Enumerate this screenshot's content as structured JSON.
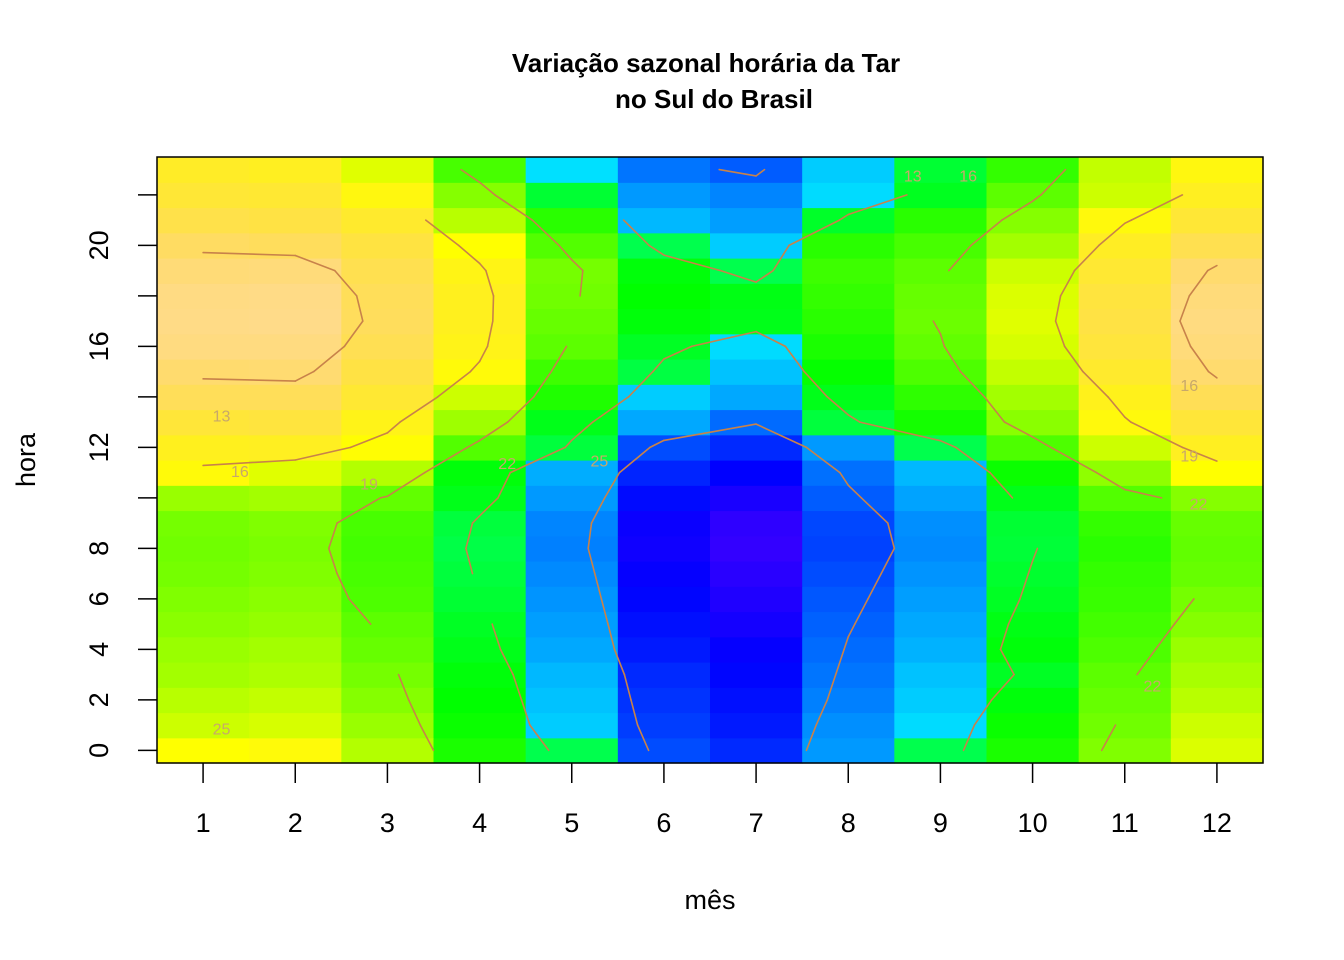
{
  "chart_data": {
    "type": "heatmap",
    "title": "Variação sazonal horária da Tar",
    "subtitle": "no Sul do Brasil",
    "xlabel": "mês",
    "ylabel": "hora",
    "x": [
      1,
      2,
      3,
      4,
      5,
      6,
      7,
      8,
      9,
      10,
      11,
      12
    ],
    "y": [
      0,
      1,
      2,
      3,
      4,
      5,
      6,
      7,
      8,
      9,
      10,
      11,
      12,
      13,
      14,
      15,
      16,
      17,
      18,
      19,
      20,
      21,
      22,
      23
    ],
    "xlim": [
      0.5,
      12.5
    ],
    "ylim": [
      -0.5,
      23.5
    ],
    "x_ticks": [
      1,
      2,
      3,
      4,
      5,
      6,
      7,
      8,
      9,
      10,
      11,
      12
    ],
    "y_ticks": [
      0,
      2,
      4,
      6,
      8,
      10,
      12,
      14,
      16,
      18,
      20,
      22
    ],
    "y_tick_labels": [
      "0",
      "2",
      "4",
      "6",
      "8",
      "",
      "12",
      "",
      "16",
      "",
      "20",
      ""
    ],
    "color_scale": "topo.colors",
    "zlim": [
      9.5,
      27.5
    ],
    "z": [
      [
        21.5,
        21.8,
        20.5,
        17.5,
        15.5,
        12.5,
        11.8,
        14.0,
        15.5,
        17.5,
        19.5,
        21.3
      ],
      [
        21.0,
        21.2,
        20.0,
        17.2,
        15.0,
        12.2,
        11.5,
        13.8,
        15.3,
        17.2,
        19.2,
        21.0
      ],
      [
        20.6,
        20.8,
        19.6,
        17.0,
        14.8,
        12.0,
        11.3,
        13.5,
        15.0,
        16.8,
        19.0,
        20.6
      ],
      [
        20.2,
        20.4,
        19.3,
        16.8,
        14.6,
        11.8,
        11.1,
        13.3,
        14.8,
        16.3,
        18.8,
        20.3
      ],
      [
        20.0,
        20.2,
        19.0,
        16.5,
        14.3,
        11.5,
        10.9,
        13.1,
        14.5,
        16.8,
        18.5,
        20.0
      ],
      [
        19.7,
        19.9,
        18.8,
        16.3,
        14.1,
        11.3,
        10.6,
        12.9,
        14.3,
        16.6,
        18.3,
        19.6
      ],
      [
        19.5,
        19.7,
        18.5,
        16.0,
        13.9,
        11.1,
        10.4,
        12.7,
        14.1,
        16.3,
        18.1,
        19.3
      ],
      [
        19.3,
        19.5,
        18.4,
        15.8,
        13.7,
        10.9,
        10.2,
        12.5,
        13.9,
        16.1,
        18.0,
        19.0
      ],
      [
        19.2,
        19.4,
        18.3,
        15.6,
        13.5,
        10.7,
        10.0,
        12.3,
        13.7,
        15.9,
        17.8,
        18.9
      ],
      [
        19.3,
        19.5,
        18.4,
        15.8,
        13.6,
        10.8,
        10.1,
        12.4,
        13.8,
        16.0,
        18.0,
        19.0
      ],
      [
        20.0,
        20.2,
        18.9,
        16.5,
        14.0,
        11.2,
        10.5,
        12.8,
        14.2,
        16.5,
        18.6,
        19.6
      ],
      [
        21.8,
        21.4,
        20.5,
        16.8,
        14.4,
        11.7,
        11.0,
        13.2,
        14.6,
        17.2,
        19.8,
        21.5
      ],
      [
        22.5,
        22.6,
        21.6,
        18.6,
        15.8,
        12.5,
        11.8,
        14.0,
        15.5,
        18.5,
        21.0,
        22.6
      ],
      [
        23.4,
        23.6,
        22.3,
        20.1,
        16.5,
        14.3,
        13.1,
        15.8,
        17.4,
        19.7,
        21.9,
        23.4
      ],
      [
        24.5,
        24.5,
        23.2,
        21.0,
        17.6,
        15.0,
        14.3,
        16.5,
        17.9,
        20.2,
        22.4,
        24.4
      ],
      [
        25.2,
        25.3,
        23.8,
        21.8,
        18.2,
        15.7,
        14.8,
        17.1,
        18.5,
        20.8,
        23.0,
        25.2
      ],
      [
        25.8,
        25.8,
        24.3,
        22.3,
        18.8,
        16.3,
        15.3,
        17.5,
        18.9,
        21.2,
        23.5,
        25.6
      ],
      [
        26.0,
        26.1,
        24.6,
        22.5,
        19.0,
        16.8,
        16.5,
        17.8,
        19.1,
        21.4,
        23.8,
        25.8
      ],
      [
        25.9,
        26.0,
        24.5,
        22.5,
        19.2,
        17.0,
        16.6,
        18.0,
        19.0,
        21.3,
        23.6,
        25.6
      ],
      [
        25.5,
        25.6,
        24.2,
        22.2,
        19.3,
        16.8,
        15.5,
        18.2,
        18.8,
        21.0,
        23.2,
        25.2
      ],
      [
        24.8,
        24.6,
        23.7,
        21.5,
        18.6,
        15.5,
        15.0,
        17.8,
        18.4,
        20.2,
        22.7,
        24.2
      ],
      [
        24.0,
        23.8,
        23.0,
        20.6,
        17.8,
        14.6,
        14.1,
        16.2,
        17.8,
        19.6,
        21.9,
        23.3
      ],
      [
        23.3,
        23.2,
        22.0,
        19.6,
        16.0,
        14.0,
        13.6,
        15.3,
        16.4,
        18.8,
        21.0,
        22.6
      ],
      [
        22.8,
        22.6,
        21.4,
        18.4,
        15.4,
        13.3,
        12.8,
        15.0,
        16.0,
        18.0,
        20.8,
        22.0
      ]
    ],
    "contour_levels": [
      13,
      16,
      19,
      22,
      25
    ],
    "contour_labels": [
      "13",
      "16",
      "19",
      "22",
      "25",
      "13",
      "16",
      "19",
      "22",
      "25",
      "22",
      "16"
    ],
    "colors": {
      "contour": "#c8824a",
      "axis": "#000000",
      "frame": "#000000"
    }
  }
}
